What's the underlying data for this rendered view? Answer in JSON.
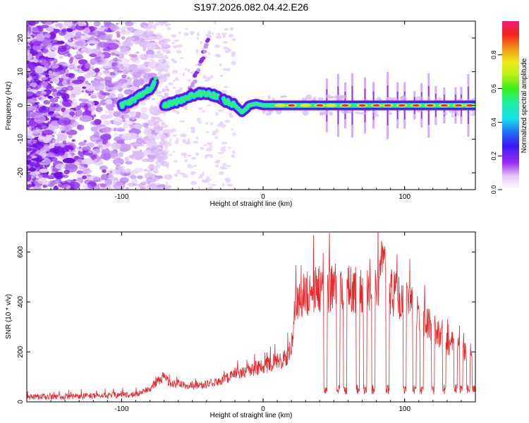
{
  "title": "S197.2026.082.04.42.E26",
  "chart_data": [
    {
      "type": "heatmap",
      "title": "S197.2026.082.04.42.E26",
      "xlabel": "Height of straight line (km)",
      "ylabel": "Frequency (Hz)",
      "xlim": [
        -167,
        150
      ],
      "ylim": [
        -25,
        25
      ],
      "xticks": [
        -100,
        0,
        100
      ],
      "yticks": [
        20,
        10,
        0,
        -10,
        -20
      ],
      "colorbar": {
        "label": "Normalized spectral amplitude",
        "range": [
          0,
          1
        ],
        "ticks": [
          "0.0",
          "0.2",
          "0.4",
          "0.6",
          "0.8"
        ],
        "colormap": "rainbow (white-violet-blue-cyan-green-yellow-orange-red-pink)"
      },
      "ridge": {
        "description": "frequency of peak spectral amplitude vs height",
        "x": [
          -100,
          -90,
          -80,
          -75,
          -70,
          -62,
          -55,
          -50,
          -45,
          -40,
          -35,
          -30,
          -25,
          -20,
          -15,
          -12,
          -10,
          -5,
          0,
          10,
          50,
          100,
          150
        ],
        "y": [
          0,
          2,
          5,
          8,
          0,
          1,
          2,
          3,
          3.5,
          3.5,
          3,
          2,
          1,
          0,
          -2,
          -1,
          0,
          0.5,
          0,
          0,
          0,
          0,
          0
        ]
      }
    },
    {
      "type": "line",
      "xlabel": "Height of straight line (km)",
      "ylabel": "SNR (10 * v/v)",
      "xlim": [
        -167,
        150
      ],
      "ylim": [
        0,
        680
      ],
      "xticks": [
        -100,
        0,
        100
      ],
      "yticks": [
        0,
        200,
        400,
        600
      ],
      "series": [
        {
          "name": "SNR",
          "color": "#e8262b",
          "x": [
            -167,
            -140,
            -110,
            -90,
            -80,
            -75,
            -70,
            -65,
            -60,
            -55,
            -50,
            -40,
            -30,
            -20,
            -10,
            0,
            10,
            17,
            20,
            22,
            25,
            30,
            40,
            50,
            60,
            70,
            80,
            85,
            90,
            100,
            105,
            110,
            120,
            130,
            140,
            150
          ],
          "y": [
            20,
            22,
            25,
            30,
            50,
            80,
            100,
            70,
            75,
            65,
            60,
            70,
            85,
            110,
            130,
            140,
            165,
            175,
            230,
            350,
            410,
            430,
            450,
            460,
            455,
            450,
            465,
            480,
            440,
            400,
            380,
            340,
            300,
            240,
            220,
            180
          ]
        }
      ],
      "dropouts_x": [
        44,
        53,
        58,
        67,
        72,
        78,
        88,
        100,
        107,
        112,
        120,
        128,
        136,
        140,
        145,
        149
      ],
      "dropout_level": 50,
      "peak": {
        "x": 85,
        "y": 680
      }
    }
  ]
}
